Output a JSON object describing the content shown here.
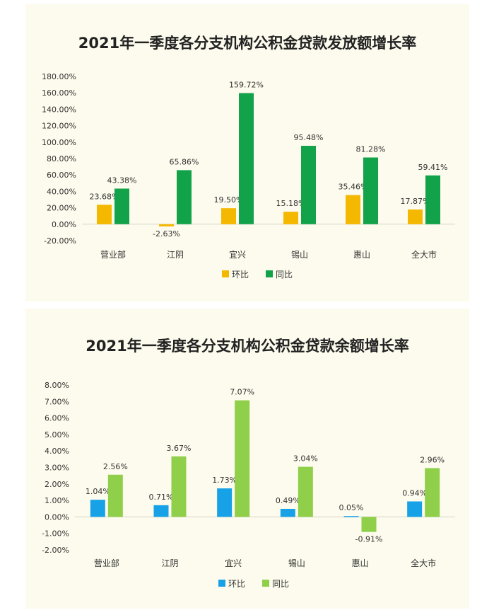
{
  "chart_data": [
    {
      "type": "bar",
      "title": "2021年一季度各分支机构公积金贷款发放额增长率",
      "categories": [
        "营业部",
        "江阴",
        "宜兴",
        "锡山",
        "惠山",
        "全大市"
      ],
      "series": [
        {
          "name": "环比",
          "values": [
            23.68,
            -2.63,
            19.5,
            15.18,
            35.46,
            17.87
          ],
          "labels": [
            "23.68%",
            "-2.63%",
            "19.50%",
            "15.18%",
            "35.46%",
            "17.87%"
          ],
          "color": "#f5b800"
        },
        {
          "name": "同比",
          "values": [
            43.38,
            65.86,
            159.72,
            95.48,
            81.28,
            59.41
          ],
          "labels": [
            "43.38%",
            "65.86%",
            "159.72%",
            "95.48%",
            "81.28%",
            "59.41%"
          ],
          "color": "#12a34a"
        }
      ],
      "ylim": [
        -20,
        180
      ],
      "yticks": [
        -20,
        0,
        20,
        40,
        60,
        80,
        100,
        120,
        140,
        160,
        180
      ],
      "ytick_labels": [
        "-20.00%",
        "0.00%",
        "20.00%",
        "40.00%",
        "60.00%",
        "80.00%",
        "100.00%",
        "120.00%",
        "140.00%",
        "160.00%",
        "180.00%"
      ],
      "xlabel": "",
      "ylabel": "",
      "grid": false,
      "legend": "bottom"
    },
    {
      "type": "bar",
      "title": "2021年一季度各分支机构公积金贷款余额增长率",
      "categories": [
        "营业部",
        "江阴",
        "宜兴",
        "锡山",
        "惠山",
        "全大市"
      ],
      "series": [
        {
          "name": "环比",
          "values": [
            1.04,
            0.71,
            1.73,
            0.49,
            0.05,
            0.94
          ],
          "labels": [
            "1.04%",
            "0.71%",
            "1.73%",
            "0.49%",
            "0.05%",
            "0.94%"
          ],
          "color": "#17a2e8"
        },
        {
          "name": "同比",
          "values": [
            2.56,
            3.67,
            7.07,
            3.04,
            -0.91,
            2.96
          ],
          "labels": [
            "2.56%",
            "3.67%",
            "7.07%",
            "3.04%",
            "-0.91%",
            "2.96%"
          ],
          "color": "#8fcf4a"
        }
      ],
      "ylim": [
        -2,
        8
      ],
      "yticks": [
        -2,
        -1,
        0,
        1,
        2,
        3,
        4,
        5,
        6,
        7,
        8
      ],
      "ytick_labels": [
        "-2.00%",
        "-1.00%",
        "0.00%",
        "1.00%",
        "2.00%",
        "3.00%",
        "4.00%",
        "5.00%",
        "6.00%",
        "7.00%",
        "8.00%"
      ],
      "xlabel": "",
      "ylabel": "",
      "grid": false,
      "legend": "bottom"
    }
  ]
}
